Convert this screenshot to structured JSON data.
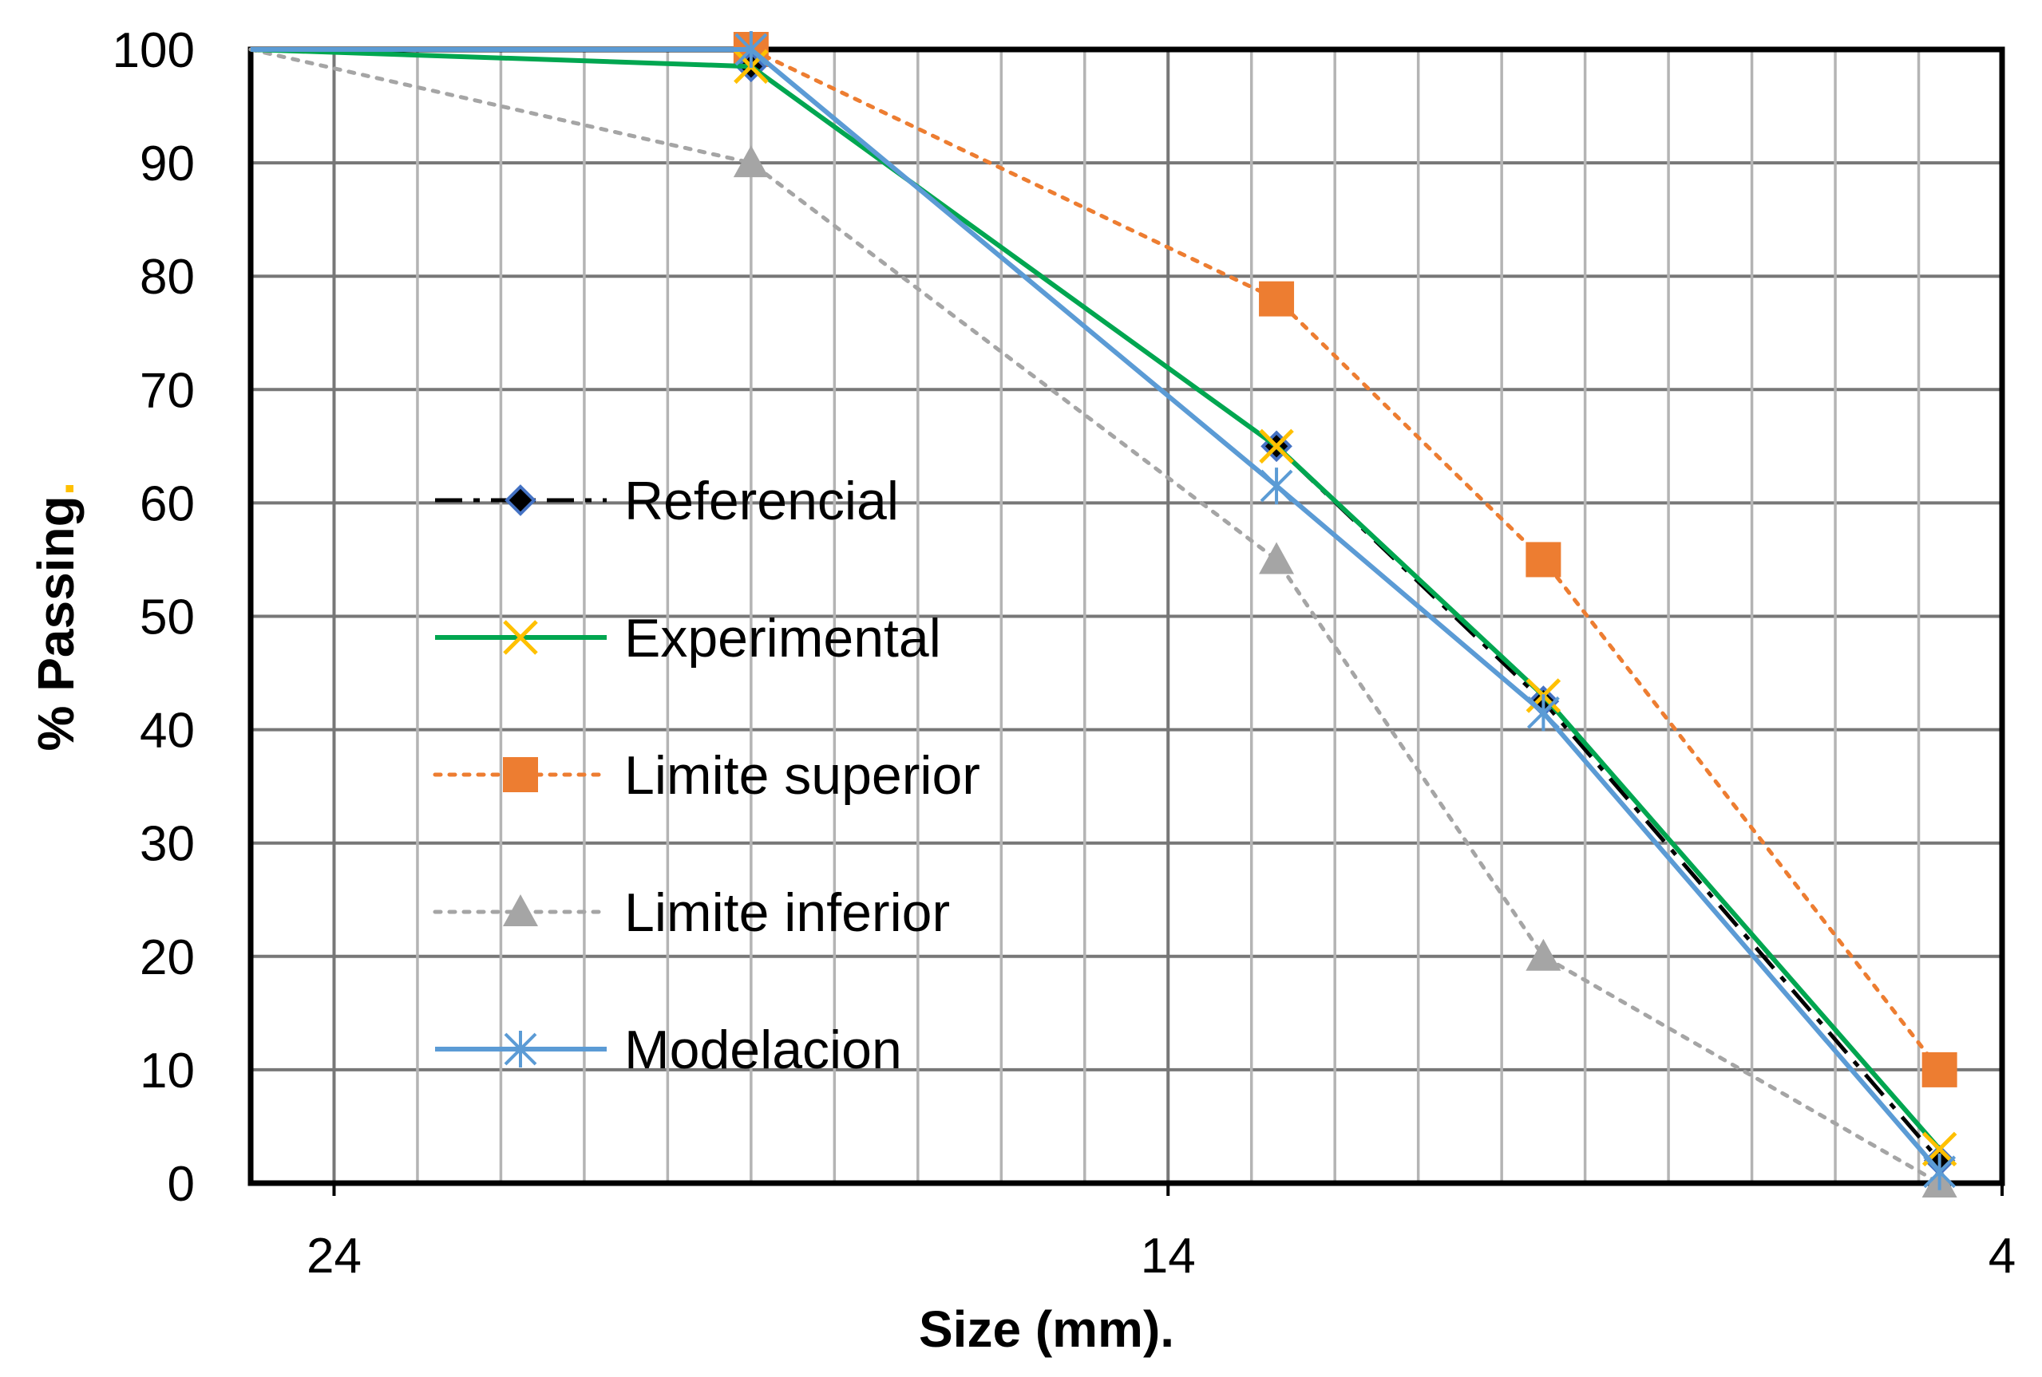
{
  "chart_data": {
    "type": "line",
    "xlabel": "Size (mm).",
    "ylabel": "% Passing",
    "ylabel_suffix": ".",
    "x_reversed": true,
    "xlim": [
      25,
      4
    ],
    "ylim": [
      0,
      100
    ],
    "x_ticks": [
      24,
      14,
      4
    ],
    "y_ticks": [
      0,
      10,
      20,
      30,
      40,
      50,
      60,
      70,
      80,
      90,
      100
    ],
    "grid": true,
    "legend_position": "center-left",
    "series": [
      {
        "name": "Referencial",
        "color": "#000000",
        "marker": "diamond",
        "line_style": "dash-dot",
        "points": [
          [
            25,
            100
          ],
          [
            19,
            98.5
          ],
          [
            12.7,
            65
          ],
          [
            9.5,
            42.5
          ],
          [
            4.75,
            2
          ]
        ]
      },
      {
        "name": "Experimental",
        "color": "#00a650",
        "marker": "x",
        "line_style": "solid",
        "points": [
          [
            25,
            100
          ],
          [
            19,
            98.5
          ],
          [
            12.7,
            65
          ],
          [
            9.5,
            43
          ],
          [
            4.75,
            3
          ]
        ]
      },
      {
        "name": "Limite superior",
        "color": "#ed7d31",
        "marker": "square",
        "line_style": "dotted",
        "points": [
          [
            19,
            100
          ],
          [
            12.7,
            78
          ],
          [
            9.5,
            55
          ],
          [
            4.75,
            10
          ]
        ]
      },
      {
        "name": "Limite inferior",
        "color": "#a5a5a5",
        "marker": "triangle",
        "line_style": "dotted",
        "points": [
          [
            25,
            100
          ],
          [
            19,
            90
          ],
          [
            12.7,
            55
          ],
          [
            9.5,
            20
          ],
          [
            4.75,
            0
          ]
        ]
      },
      {
        "name": "Modelacion",
        "color": "#5b9bd5",
        "marker": "asterisk",
        "line_style": "solid",
        "points": [
          [
            25,
            100
          ],
          [
            19,
            100
          ],
          [
            12.7,
            61.5
          ],
          [
            9.5,
            41.5
          ],
          [
            4.75,
            1
          ]
        ]
      }
    ]
  }
}
